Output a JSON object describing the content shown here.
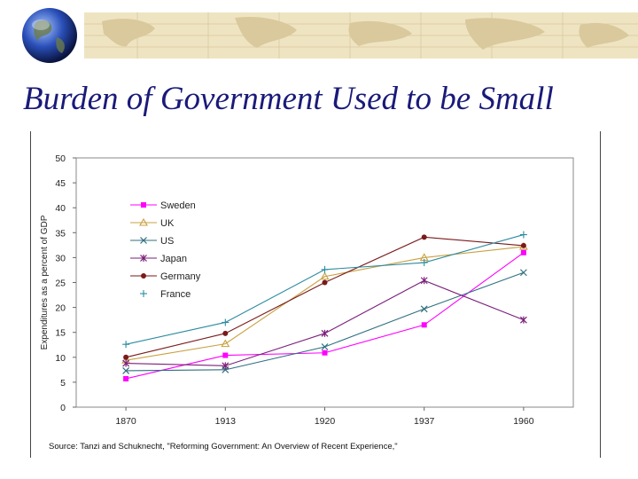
{
  "slide": {
    "title": "Burden of Government Used to be Small"
  },
  "chart_data": {
    "type": "line",
    "title": "",
    "xlabel": "",
    "ylabel": "Expenditures as a percent of GDP",
    "categories": [
      "1870",
      "1913",
      "1920",
      "1937",
      "1960"
    ],
    "ylim": [
      0,
      50
    ],
    "yticks": [
      0,
      5,
      10,
      15,
      20,
      25,
      30,
      35,
      40,
      45,
      50
    ],
    "legend_position": "left-inside",
    "series": [
      {
        "name": "Sweden",
        "marker": "square",
        "color": "#ff00ff",
        "values": [
          5.7,
          10.4,
          10.9,
          16.5,
          31.0
        ]
      },
      {
        "name": "UK",
        "marker": "triangle",
        "color": "#c9a040",
        "values": [
          9.4,
          12.7,
          26.2,
          30.0,
          32.2
        ]
      },
      {
        "name": "US",
        "marker": "x",
        "color": "#2f6f7f",
        "values": [
          7.3,
          7.5,
          12.1,
          19.7,
          27.0
        ]
      },
      {
        "name": "Japan",
        "marker": "star",
        "color": "#7a1f7a",
        "values": [
          8.8,
          8.3,
          14.8,
          25.4,
          17.5
        ]
      },
      {
        "name": "Germany",
        "marker": "circle",
        "color": "#7a1a1a",
        "values": [
          10.0,
          14.8,
          25.0,
          34.1,
          32.4
        ]
      },
      {
        "name": "France",
        "marker": "plus",
        "color": "#2a8aa0",
        "values": [
          12.6,
          17.0,
          27.6,
          29.0,
          34.6
        ]
      }
    ],
    "source": "Source: Tanzi and Schuknecht, \"Reforming Government: An Overview of Recent Experience,\""
  }
}
